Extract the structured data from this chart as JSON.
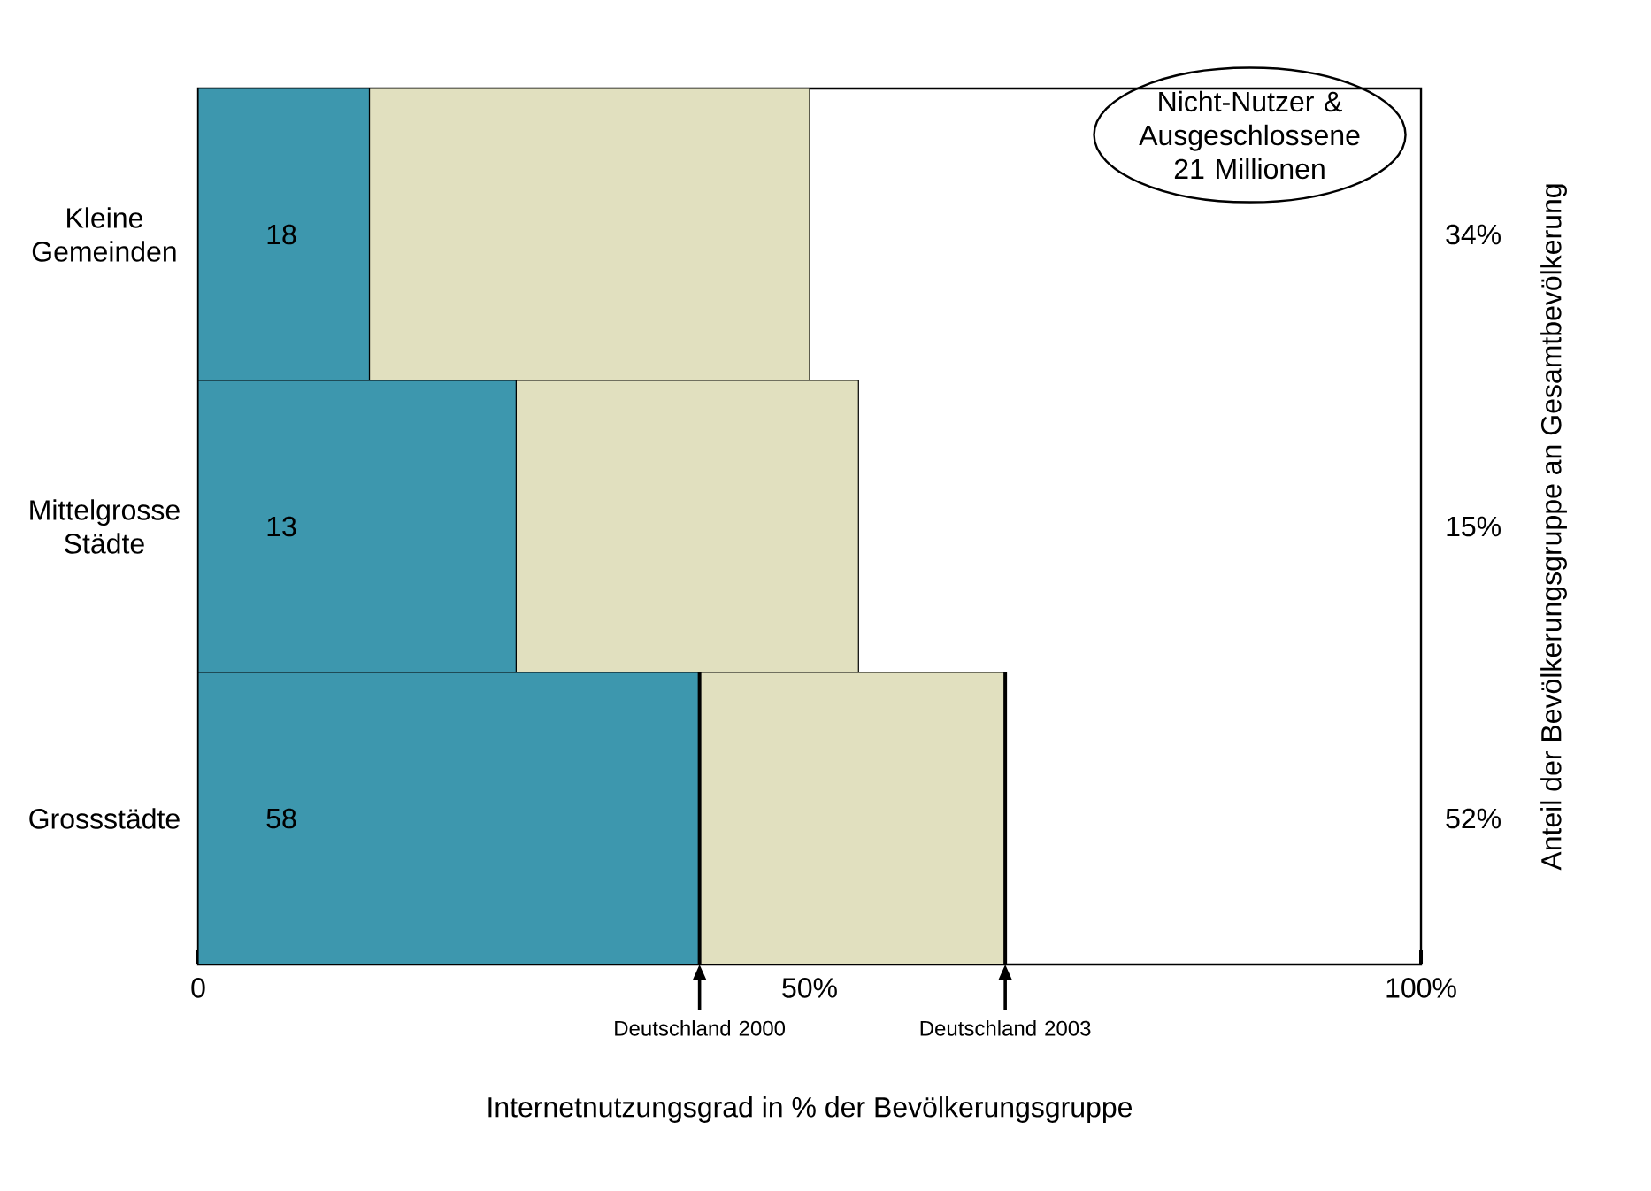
{
  "chart_data": {
    "type": "bar",
    "orientation": "horizontal",
    "stacked": true,
    "categories": [
      "Kleine Gemeinden",
      "Mittelgrosse Städte",
      "Grossstädte"
    ],
    "series": [
      {
        "color": "#3d97ae",
        "values": [
          14,
          26,
          41
        ]
      },
      {
        "color": "#e1e0bf",
        "values": [
          36,
          28,
          25
        ]
      }
    ],
    "xlim": [
      0,
      100
    ],
    "xticks": [
      0,
      {
        "value": 50,
        "label": "50%"
      },
      {
        "value": 100,
        "label": "100%"
      }
    ],
    "xlabel": "Internetnutzungsgrad in % der Bevölkerungsgruppe",
    "ylabel": "Anteil der Bevölkerungsgruppe an Gesamtbevölkerung",
    "ref_lines": [
      {
        "axis": "x",
        "value": 41,
        "label": "Deutschland 2000"
      },
      {
        "axis": "x",
        "value": 66,
        "label": "Deutschland 2003"
      }
    ],
    "annotations": [
      "Nicht-Nutzer & Ausgeschlossene 21 Millionen",
      "34%",
      "15%",
      "52%",
      "18",
      "13",
      "58"
    ]
  }
}
